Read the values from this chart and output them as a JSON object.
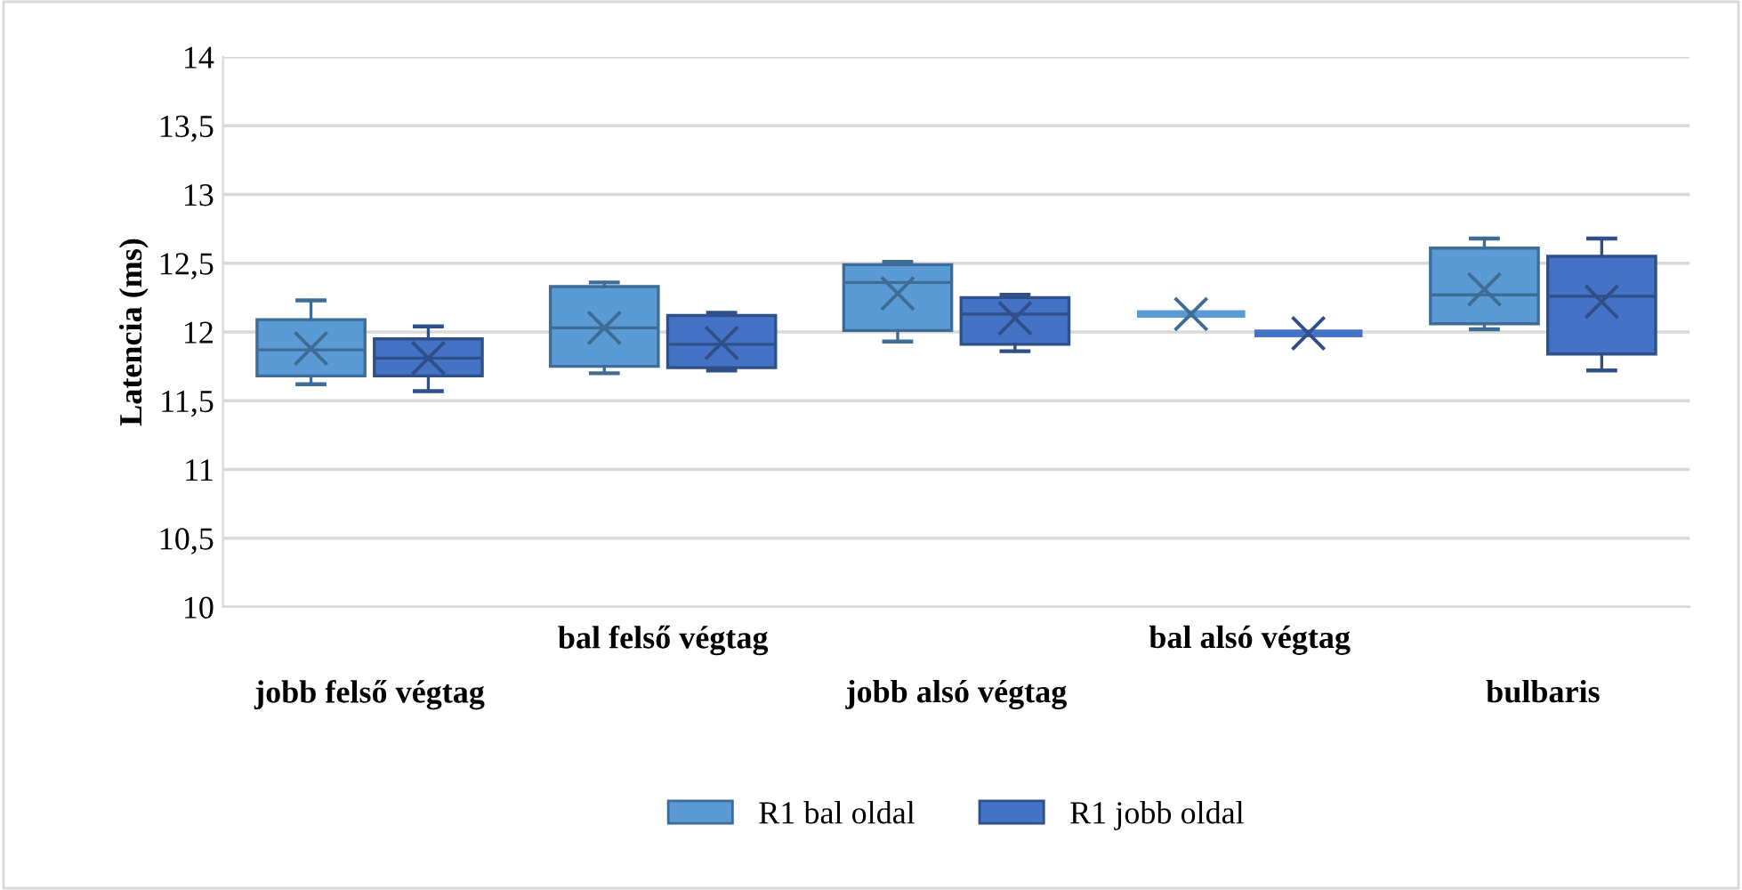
{
  "chart_data": {
    "type": "box",
    "ylabel": "Latencia (ms)",
    "categories": [
      "jobb felső végtag",
      "bal felső végtag",
      "jobb alsó végtag",
      "bal alsó végtag",
      "bulbaris"
    ],
    "ylim": [
      10,
      14
    ],
    "yticks": [
      10,
      {
        "value": 10.5,
        "label": "10,5"
      },
      11,
      {
        "value": 11.5,
        "label": "11,5"
      },
      12,
      {
        "value": 12.5,
        "label": "12,5"
      },
      13,
      {
        "value": 13.5,
        "label": "13,5"
      },
      14
    ],
    "grid": "y",
    "legend": "bottom",
    "series": [
      {
        "name": "R1 bal oldal",
        "color": "#5b9bd5",
        "boxes": [
          {
            "low": 11.62,
            "q1": 11.68,
            "median": 11.87,
            "q3": 12.09,
            "high": 12.23,
            "mean": 11.88
          },
          {
            "low": 11.7,
            "q1": 11.75,
            "median": 12.03,
            "q3": 12.33,
            "high": 12.36,
            "mean": 12.03
          },
          {
            "low": 11.93,
            "q1": 12.01,
            "median": 12.36,
            "q3": 12.49,
            "high": 12.51,
            "mean": 12.28
          },
          {
            "low": 12.13,
            "q1": 12.13,
            "median": 12.13,
            "q3": 12.13,
            "high": 12.13,
            "mean": 12.13
          },
          {
            "low": 12.02,
            "q1": 12.06,
            "median": 12.27,
            "q3": 12.61,
            "high": 12.68,
            "mean": 12.31
          }
        ]
      },
      {
        "name": "R1 jobb oldal",
        "color": "#4472c4",
        "boxes": [
          {
            "low": 11.57,
            "q1": 11.68,
            "median": 11.81,
            "q3": 11.95,
            "high": 12.04,
            "mean": 11.81
          },
          {
            "low": 11.72,
            "q1": 11.74,
            "median": 11.91,
            "q3": 12.12,
            "high": 12.14,
            "mean": 11.92
          },
          {
            "low": 11.86,
            "q1": 11.91,
            "median": 12.13,
            "q3": 12.25,
            "high": 12.27,
            "mean": 12.1
          },
          {
            "low": 11.99,
            "q1": 11.99,
            "median": 11.99,
            "q3": 11.99,
            "high": 11.99,
            "mean": 11.99
          },
          {
            "low": 11.72,
            "q1": 11.84,
            "median": 12.26,
            "q3": 12.55,
            "high": 12.68,
            "mean": 12.22
          }
        ]
      }
    ]
  }
}
